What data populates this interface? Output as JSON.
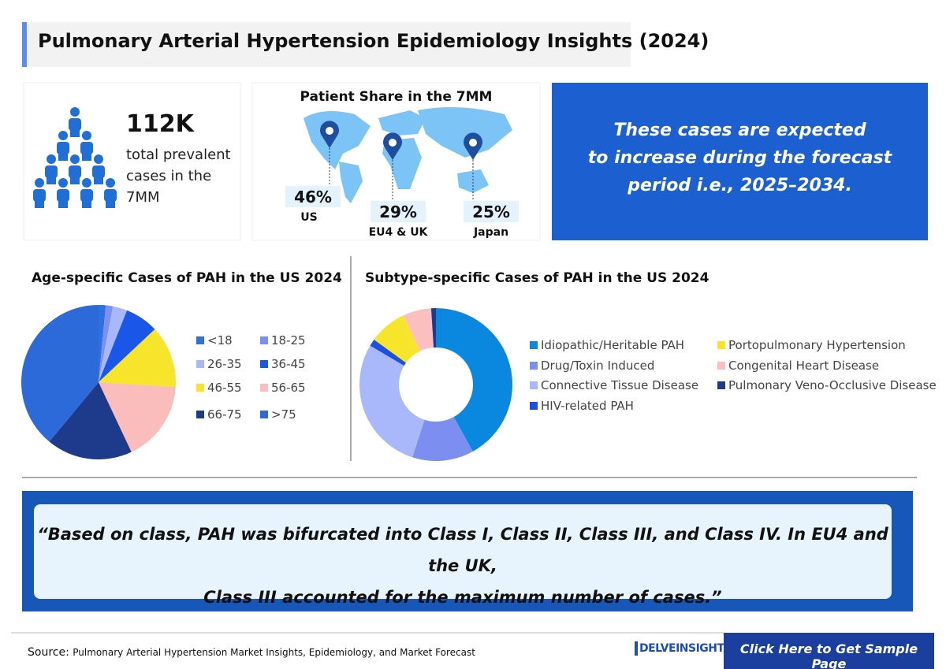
{
  "header": {
    "title": "Pulmonary Arterial Hypertension Epidemiology Insights (2024)"
  },
  "stats": {
    "value": "112K",
    "lines": [
      "total prevalent",
      "cases in the",
      "7MM"
    ]
  },
  "map": {
    "title": "Patient Share in the 7MM",
    "regions": [
      {
        "value": "46%",
        "label": "US"
      },
      {
        "value": "29%",
        "label": "EU4 & UK"
      },
      {
        "value": "25%",
        "label": "Japan"
      }
    ]
  },
  "callout": {
    "lines": [
      "These cases are expected",
      "to increase during the forecast",
      "period i.e., 2025–2034."
    ]
  },
  "chart_data": [
    {
      "type": "pie",
      "title": "Age-specific Cases of PAH in the US 2024",
      "categories": [
        "<18",
        "18-25",
        "26-35",
        "36-45",
        "46-55",
        "56-65",
        "66-75",
        ">75"
      ],
      "values": [
        1.5,
        1.5,
        3,
        7,
        13,
        17,
        18,
        39
      ],
      "colors": [
        "#2f6fe0",
        "#7b8ff5",
        "#a9b8fb",
        "#1a56e8",
        "#f7e52c",
        "#fbbcbc",
        "#1e3a8a",
        "#2b6ad8"
      ]
    },
    {
      "type": "donut",
      "title": "Subtype-specific Cases of PAH in the US 2024",
      "categories": [
        "Idiopathic/Heritable PAH",
        "Drug/Toxin Induced",
        "Connective Tissue Disease",
        "HIV-related PAH",
        "Portopulmonary Hypertension",
        "Congenital Heart Disease",
        "Pulmonary Veno-Occlusive Disease"
      ],
      "values": [
        42,
        13,
        28.5,
        1.5,
        8,
        6,
        1
      ],
      "colors": [
        "#0a88e0",
        "#7c8ff0",
        "#a9b8fb",
        "#1d4fe0",
        "#f7e52c",
        "#fbbfc0",
        "#1e3a8a"
      ]
    }
  ],
  "quote": {
    "lines": [
      "“Based on class, PAH was bifurcated into Class I, Class II, Class III, and Class IV. In EU4 and the UK,",
      "Class III accounted for the maximum number of cases.”"
    ]
  },
  "footer": {
    "source_label": "Source:",
    "source_text": "Pulmonary Arterial Hypertension Market Insights, Epidemiology, and Market Forecast",
    "logo": "DELVEINSIGHT",
    "button": "Click Here to Get Sample Page"
  }
}
